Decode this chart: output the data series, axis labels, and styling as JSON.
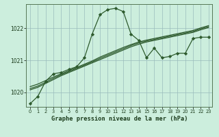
{
  "title": "Graphe pression niveau de la mer (hPa)",
  "bg_color": "#cceedd",
  "grid_color": "#99bbbb",
  "line_color": "#2d5a2d",
  "marker": "D",
  "markersize": 2.2,
  "linewidth": 0.9,
  "xlim": [
    -0.5,
    23.5
  ],
  "ylim": [
    1019.55,
    1022.75
  ],
  "yticks": [
    1020,
    1021,
    1022
  ],
  "xticks": [
    0,
    1,
    2,
    3,
    4,
    5,
    6,
    7,
    8,
    9,
    10,
    11,
    12,
    13,
    14,
    15,
    16,
    17,
    18,
    19,
    20,
    21,
    22,
    23
  ],
  "series_jagged": [
    1019.65,
    1019.88,
    1020.35,
    1020.58,
    1020.62,
    1020.72,
    1020.8,
    1021.08,
    1021.82,
    1022.42,
    1022.58,
    1022.62,
    1022.52,
    1021.82,
    1021.62,
    1021.08,
    1021.38,
    1021.08,
    1021.12,
    1021.22,
    1021.22,
    1021.68,
    1021.72,
    1021.72
  ],
  "series_smooth1": [
    1020.08,
    1020.16,
    1020.28,
    1020.4,
    1020.52,
    1020.62,
    1020.72,
    1020.82,
    1020.92,
    1021.02,
    1021.12,
    1021.22,
    1021.32,
    1021.42,
    1021.5,
    1021.57,
    1021.62,
    1021.67,
    1021.72,
    1021.77,
    1021.82,
    1021.87,
    1021.95,
    1022.02
  ],
  "series_smooth2": [
    1020.12,
    1020.2,
    1020.32,
    1020.44,
    1020.55,
    1020.65,
    1020.75,
    1020.85,
    1020.95,
    1021.06,
    1021.16,
    1021.26,
    1021.36,
    1021.46,
    1021.54,
    1021.6,
    1021.65,
    1021.7,
    1021.75,
    1021.8,
    1021.85,
    1021.9,
    1021.98,
    1022.05
  ],
  "series_smooth3": [
    1020.18,
    1020.26,
    1020.37,
    1020.48,
    1020.58,
    1020.68,
    1020.78,
    1020.88,
    1020.98,
    1021.1,
    1021.2,
    1021.3,
    1021.4,
    1021.49,
    1021.57,
    1021.63,
    1021.68,
    1021.73,
    1021.78,
    1021.83,
    1021.88,
    1021.93,
    1022.01,
    1022.08
  ]
}
